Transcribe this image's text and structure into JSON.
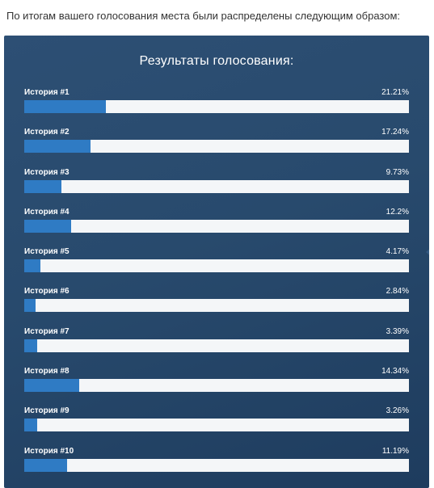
{
  "intro_text": "По итогам вашего голосования места были распределены следующим образом:",
  "colors": {
    "panel_background": "#284a6d",
    "bar_fill": "#2f7bc4",
    "bar_track": "#f4f6f8",
    "text": "#ffffff"
  },
  "chart_data": {
    "type": "bar",
    "orientation": "horizontal",
    "title": "Результаты голосования:",
    "unit": "%",
    "xlim": [
      0,
      100
    ],
    "categories": [
      "История #1",
      "История #2",
      "История #3",
      "История #4",
      "История #5",
      "История #6",
      "История #7",
      "История #8",
      "История #9",
      "История #10"
    ],
    "values": [
      21.21,
      17.24,
      9.73,
      12.2,
      4.17,
      2.84,
      3.39,
      14.34,
      3.26,
      11.19
    ],
    "value_labels": [
      "21.21%",
      "17.24%",
      "9.73%",
      "12.2%",
      "4.17%",
      "2.84%",
      "3.39%",
      "14.34%",
      "3.26%",
      "11.19%"
    ]
  }
}
